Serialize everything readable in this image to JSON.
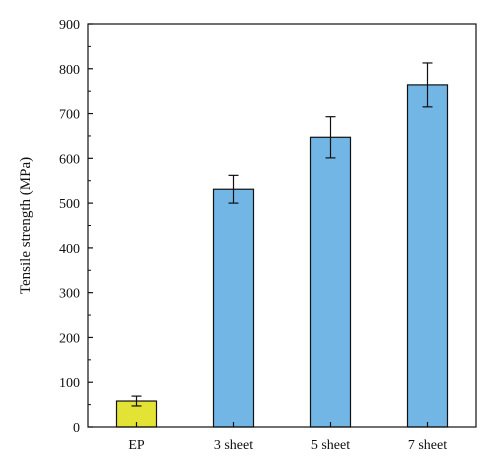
{
  "chart_data": {
    "type": "bar",
    "categories": [
      "EP",
      "3 sheet",
      "5 sheet",
      "7 sheet"
    ],
    "values": [
      58,
      531,
      647,
      764
    ],
    "errors": [
      11,
      31,
      46,
      49
    ],
    "colors": [
      "#e3e336",
      "#72b6e6",
      "#72b6e6",
      "#72b6e6"
    ],
    "ylabel": "Tensile strength (MPa)",
    "xlabel": "",
    "title": "",
    "ylim": [
      0,
      900
    ],
    "yticks": [
      0,
      100,
      200,
      300,
      400,
      500,
      600,
      700,
      800,
      900
    ],
    "grid": false,
    "legend": "none"
  }
}
